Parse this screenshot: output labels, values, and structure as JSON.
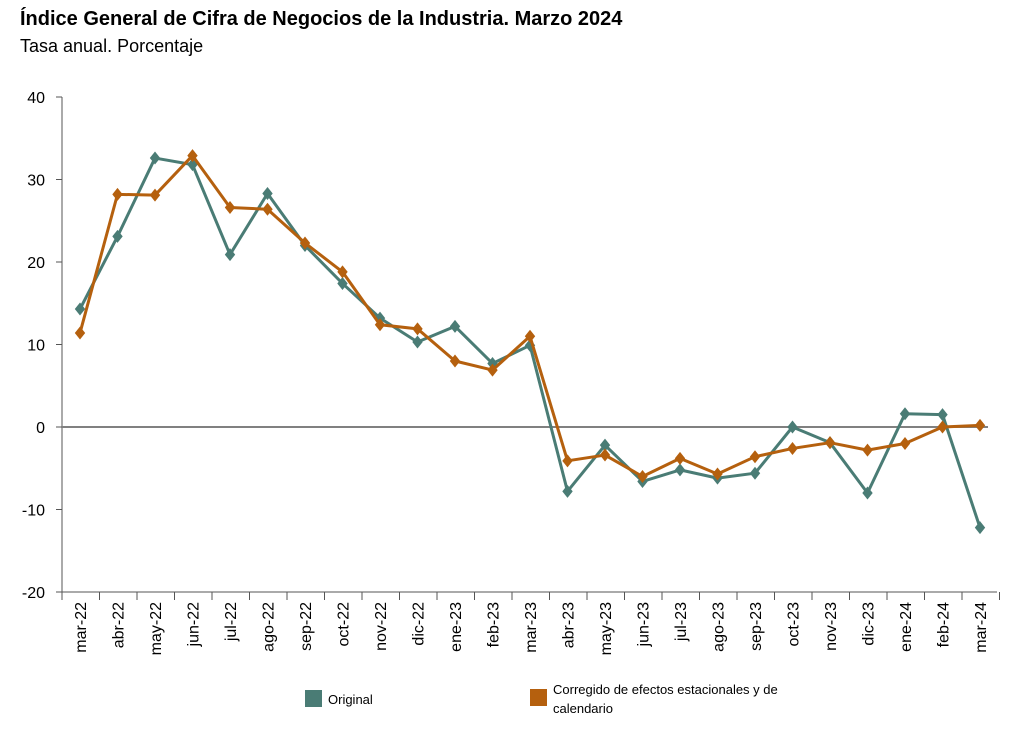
{
  "chart_data": {
    "type": "line",
    "title": "Índice General de Cifra de Negocios de la Industria. Marzo 2024",
    "subtitle": "Tasa anual. Porcentaje",
    "categories": [
      "mar-22",
      "abr-22",
      "may-22",
      "jun-22",
      "jul-22",
      "ago-22",
      "sep-22",
      "oct-22",
      "nov-22",
      "dic-22",
      "ene-23",
      "feb-23",
      "mar-23",
      "abr-23",
      "may-23",
      "jun-23",
      "jul-23",
      "ago-23",
      "sep-23",
      "oct-23",
      "nov-23",
      "dic-23",
      "ene-24",
      "feb-24",
      "mar-24"
    ],
    "series": [
      {
        "name": "Original",
        "color": "#4a7c75",
        "values": [
          14.3,
          23.1,
          32.6,
          31.8,
          20.9,
          28.3,
          22.0,
          17.4,
          13.2,
          10.3,
          12.2,
          7.7,
          9.9,
          -7.8,
          -2.2,
          -6.6,
          -5.2,
          -6.2,
          -5.6,
          0.0,
          -1.9,
          -8.0,
          1.6,
          1.5,
          -12.2
        ]
      },
      {
        "name": "Corregido de efectos estacionales y de calendario",
        "color": "#b5600e",
        "values": [
          11.4,
          28.2,
          28.1,
          32.9,
          26.6,
          26.4,
          22.3,
          18.8,
          12.4,
          11.9,
          8.0,
          6.9,
          11.0,
          -4.1,
          -3.4,
          -6.0,
          -3.8,
          -5.7,
          -3.6,
          -2.6,
          -1.9,
          -2.8,
          -2.0,
          0.0,
          0.2
        ]
      }
    ],
    "yticks": [
      40,
      30,
      20,
      10,
      0,
      -10,
      -20
    ],
    "ylim": [
      -20,
      40
    ],
    "zero_line": true,
    "grid": false,
    "legend_position": "bottom",
    "axis_color": "#555555",
    "zero_line_color": "#808080"
  },
  "legend": {
    "original": "Original",
    "corrected": "Corregido de efectos estacionales y de calendario"
  }
}
